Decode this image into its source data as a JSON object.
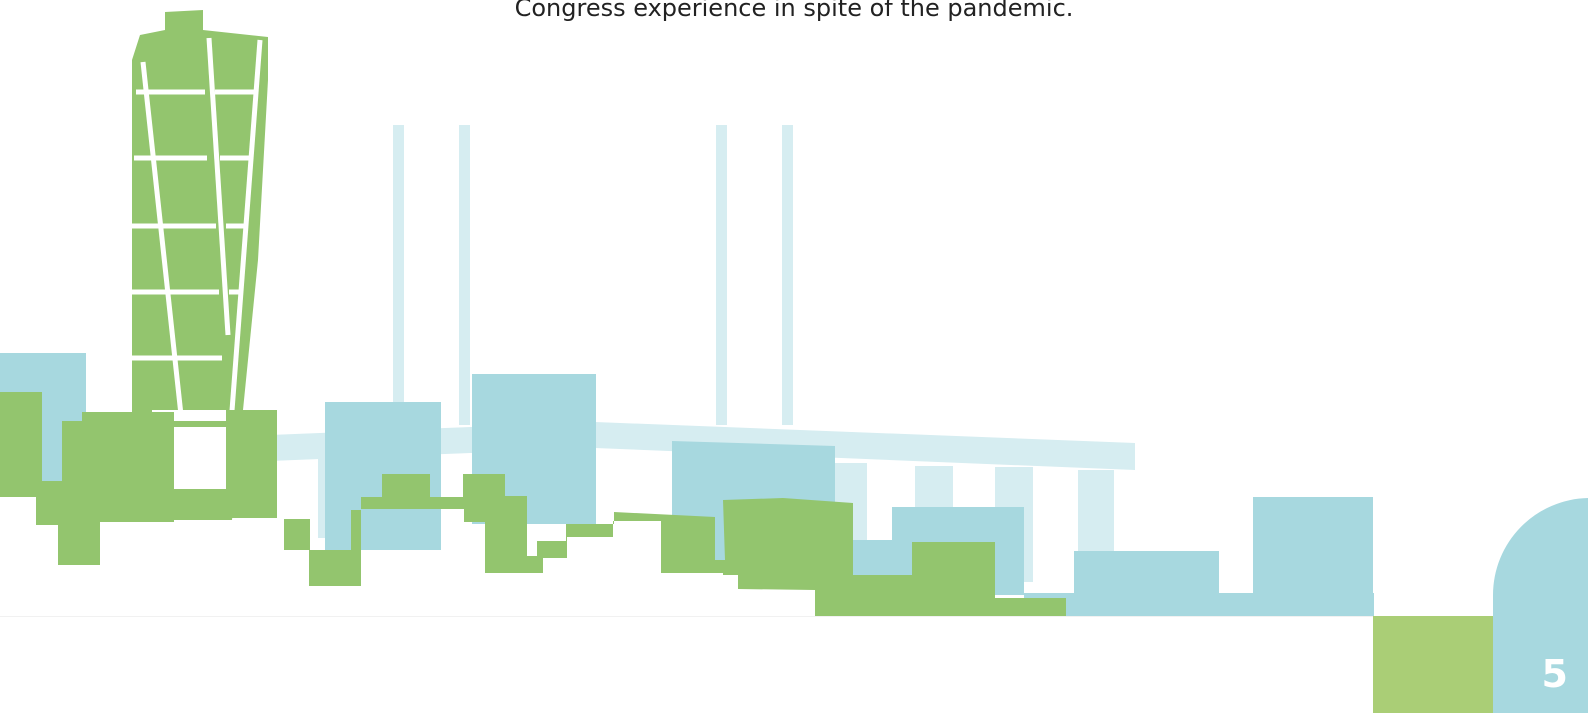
{
  "page": {
    "intro_text": "Congress experience in spite of the pandemic.",
    "page_number": "5"
  },
  "colors": {
    "green": "#93c56e",
    "light_green": "#aace76",
    "blue": "#a7d8df",
    "pale_blue": "#d6edf1",
    "white": "#ffffff",
    "text": "#222222"
  },
  "illustration": {
    "subject": "city-skyline-illustration",
    "elements": [
      "twisting-tower",
      "bridge-pylons",
      "bridge-deck",
      "buildings",
      "corner-shapes"
    ]
  }
}
